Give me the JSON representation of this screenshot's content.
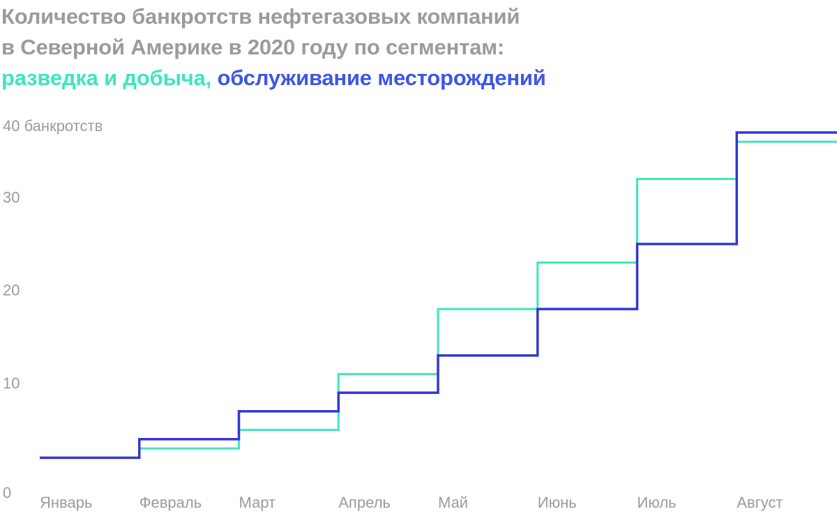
{
  "title": {
    "line1": "Количество банкротств нефтегазовых компаний",
    "line2": "в Северной Америке в 2020 году по сегментам:",
    "legend_a": "разведка и добыча,",
    "legend_b": "обслуживание месторождений"
  },
  "colors": {
    "exploration": "#3ee6bb",
    "services": "#3535d6",
    "text": "#9b9b9b"
  },
  "chart_data": {
    "type": "line",
    "step": true,
    "categories": [
      "Январь",
      "Февраль",
      "Март",
      "Апрель",
      "Май",
      "Июнь",
      "Июль",
      "Август"
    ],
    "ylabel_top": "40 банкротств",
    "ytick_labels": [
      "0",
      "10",
      "20",
      "30"
    ],
    "yticks": [
      0,
      10,
      20,
      30,
      40
    ],
    "ylim": [
      0,
      40
    ],
    "grid": false,
    "series": [
      {
        "name": "разведка и добыча",
        "color": "#3ee6bb",
        "values": [
          2,
          3,
          5,
          11,
          18,
          23,
          32,
          36
        ]
      },
      {
        "name": "обслуживание месторождений",
        "color": "#3535d6",
        "values": [
          2,
          4,
          7,
          9,
          13,
          18,
          25,
          37
        ]
      }
    ]
  }
}
